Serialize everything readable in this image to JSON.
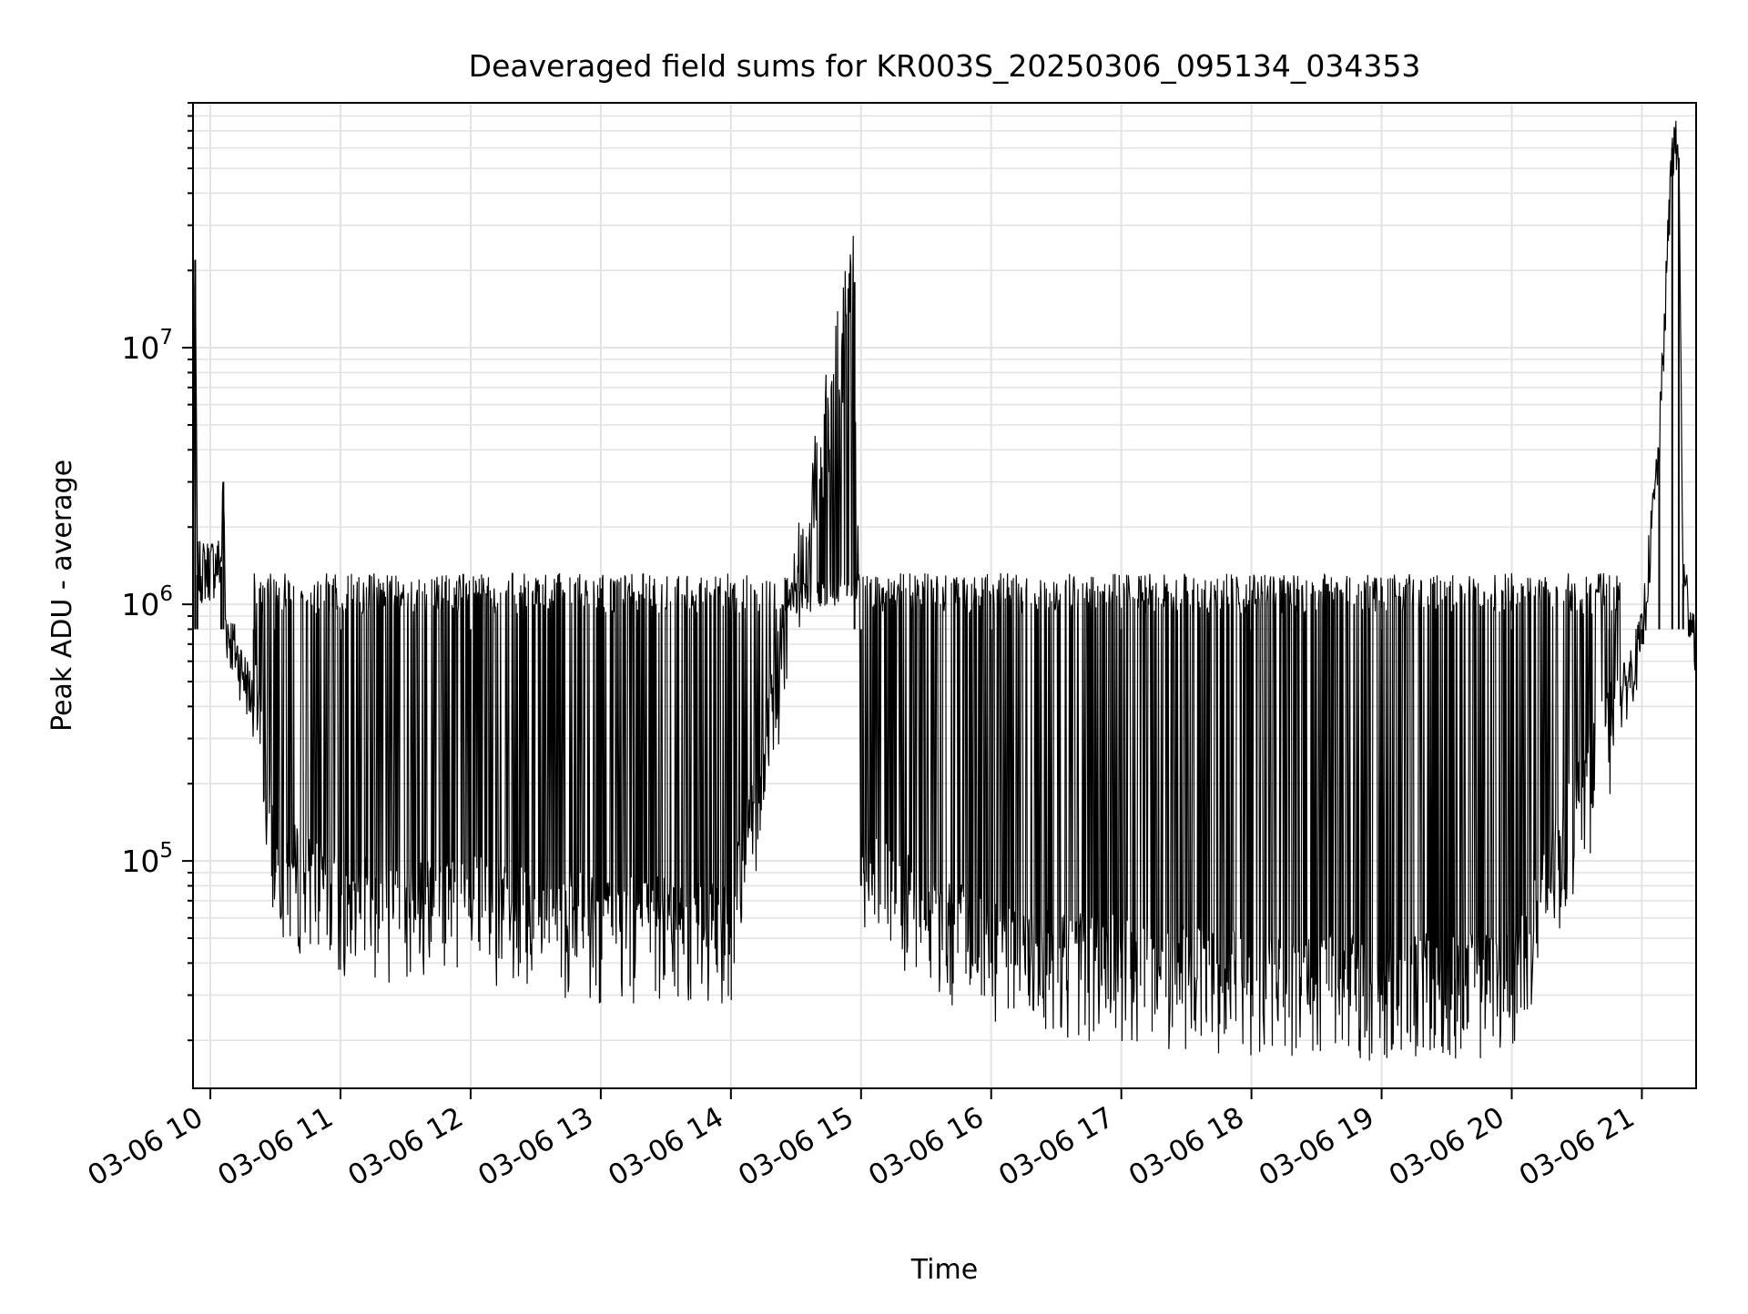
{
  "chart_data": {
    "type": "line",
    "title": "Deaveraged field sums for KR003S_20250306_095134_034353",
    "xlabel": "Time",
    "ylabel": "Peak ADU - average",
    "x_ticks": [
      "03-06 10",
      "03-06 11",
      "03-06 12",
      "03-06 13",
      "03-06 14",
      "03-06 15",
      "03-06 16",
      "03-06 17",
      "03-06 18",
      "03-06 19",
      "03-06 20",
      "03-06 21"
    ],
    "xlim": [
      "2025-03-06 09:52",
      "2025-03-06 21:25"
    ],
    "y_scale": "log",
    "ylim": [
      13000,
      90000000
    ],
    "y_major_ticks": [
      100000,
      1000000,
      10000000
    ],
    "y_tick_labels": [
      {
        "base": "10",
        "exp": "5"
      },
      {
        "base": "10",
        "exp": "6"
      },
      {
        "base": "10",
        "exp": "7"
      }
    ],
    "grid": true,
    "line_color": "#000000",
    "series": [
      {
        "description_points": [
          [
            "2025-03-06 09:52",
            1500000
          ],
          [
            "2025-03-06 09:53",
            22000000
          ],
          [
            "2025-03-06 09:54",
            1300000
          ],
          [
            "2025-03-06 10:05",
            1400000
          ],
          [
            "2025-03-06 10:06",
            3000000
          ],
          [
            "2025-03-06 10:07",
            800000
          ],
          [
            "2025-03-06 10:20",
            400000
          ],
          [
            "2025-03-06 10:30",
            90000
          ],
          [
            "2025-03-06 11:00",
            60000
          ],
          [
            "2025-03-06 12:00",
            60000
          ],
          [
            "2025-03-06 13:00",
            50000
          ],
          [
            "2025-03-06 14:00",
            50000
          ],
          [
            "2025-03-06 14:57",
            18000000
          ],
          [
            "2025-03-06 15:00",
            80000
          ],
          [
            "2025-03-06 16:00",
            40000
          ],
          [
            "2025-03-06 17:00",
            35000
          ],
          [
            "2025-03-06 18:00",
            30000
          ],
          [
            "2025-03-06 19:00",
            30000
          ],
          [
            "2025-03-06 20:00",
            30000
          ],
          [
            "2025-03-06 20:45",
            300000
          ],
          [
            "2025-03-06 21:00",
            700000
          ],
          [
            "2025-03-06 21:08",
            4000000
          ],
          [
            "2025-03-06 21:14",
            60000000
          ],
          [
            "2025-03-06 21:17",
            55000000
          ],
          [
            "2025-03-06 21:19",
            1200000
          ],
          [
            "2025-03-06 21:25",
            700000
          ]
        ]
      }
    ]
  }
}
